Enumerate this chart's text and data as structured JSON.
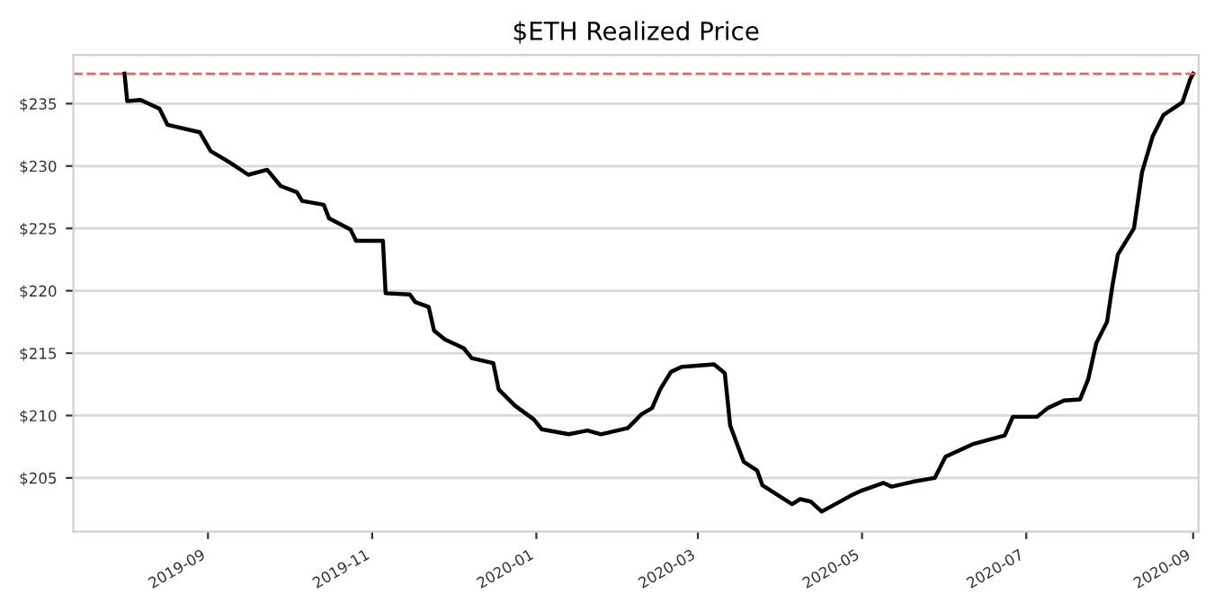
{
  "chart_data": {
    "type": "line",
    "title": "$ETH Realized Price",
    "x": [
      "2019-08-01",
      "2019-08-02",
      "2019-08-07",
      "2019-08-14",
      "2019-08-17",
      "2019-08-29",
      "2019-09-02",
      "2019-09-09",
      "2019-09-16",
      "2019-09-23",
      "2019-09-28",
      "2019-10-04",
      "2019-10-06",
      "2019-10-14",
      "2019-10-16",
      "2019-10-24",
      "2019-10-26",
      "2019-11-05",
      "2019-11-06",
      "2019-11-15",
      "2019-11-17",
      "2019-11-22",
      "2019-11-24",
      "2019-11-28",
      "2019-12-05",
      "2019-12-08",
      "2019-12-16",
      "2019-12-18",
      "2019-12-24",
      "2019-12-31",
      "2020-01-03",
      "2020-01-13",
      "2020-01-20",
      "2020-01-25",
      "2020-02-04",
      "2020-02-09",
      "2020-02-13",
      "2020-02-16",
      "2020-02-20",
      "2020-02-24",
      "2020-03-07",
      "2020-03-11",
      "2020-03-13",
      "2020-03-18",
      "2020-03-23",
      "2020-03-25",
      "2020-04-05",
      "2020-04-08",
      "2020-04-12",
      "2020-04-16",
      "2020-04-27",
      "2020-05-01",
      "2020-05-09",
      "2020-05-12",
      "2020-05-20",
      "2020-05-28",
      "2020-06-01",
      "2020-06-11",
      "2020-06-23",
      "2020-06-26",
      "2020-07-05",
      "2020-07-09",
      "2020-07-15",
      "2020-07-21",
      "2020-07-24",
      "2020-07-27",
      "2020-07-31",
      "2020-08-02",
      "2020-08-04",
      "2020-08-10",
      "2020-08-13",
      "2020-08-17",
      "2020-08-21",
      "2020-08-28",
      "2020-08-31",
      "2020-09-01"
    ],
    "series": [
      {
        "color": "#000000",
        "values": [
          237.4,
          235.2,
          235.3,
          234.6,
          233.3,
          232.7,
          231.2,
          230.3,
          229.3,
          229.7,
          228.4,
          227.9,
          227.2,
          226.9,
          225.8,
          224.9,
          224.0,
          224.0,
          219.8,
          219.7,
          219.1,
          218.7,
          216.8,
          216.1,
          215.4,
          214.6,
          214.2,
          212.1,
          210.8,
          209.7,
          208.9,
          208.5,
          208.8,
          208.5,
          209.0,
          210.1,
          210.6,
          212.1,
          213.5,
          213.9,
          214.1,
          213.4,
          209.2,
          206.3,
          205.6,
          204.4,
          202.9,
          203.3,
          203.1,
          202.3,
          203.6,
          204.0,
          204.6,
          204.3,
          204.7,
          205.0,
          206.7,
          207.7,
          208.4,
          209.9,
          209.9,
          210.6,
          211.2,
          211.3,
          212.9,
          215.8,
          217.5,
          220.4,
          222.9,
          225.0,
          229.5,
          232.4,
          234.1,
          235.1,
          237.0,
          237.4
        ]
      }
    ],
    "xlim": [
      "2019-07-13",
      "2020-09-03"
    ],
    "xticks": [
      {
        "value": "2019-09-01",
        "label": "2019-09"
      },
      {
        "value": "2019-11-01",
        "label": "2019-11"
      },
      {
        "value": "2020-01-01",
        "label": "2020-01"
      },
      {
        "value": "2020-03-01",
        "label": "2020-03"
      },
      {
        "value": "2020-05-01",
        "label": "2020-05"
      },
      {
        "value": "2020-07-01",
        "label": "2020-07"
      },
      {
        "value": "2020-09-01",
        "label": "2020-09"
      }
    ],
    "ylim": [
      200.7,
      238.9
    ],
    "yticks": [
      {
        "value": 205,
        "label": "$205"
      },
      {
        "value": 210,
        "label": "$210"
      },
      {
        "value": 215,
        "label": "$215"
      },
      {
        "value": 220,
        "label": "$220"
      },
      {
        "value": 225,
        "label": "$225"
      },
      {
        "value": 230,
        "label": "$230"
      },
      {
        "value": 235,
        "label": "$235"
      }
    ],
    "ref_lines": [
      {
        "axis": "y",
        "value": 237.4,
        "color": "#e06666",
        "line_style": "dashed"
      }
    ],
    "grid": "y",
    "legend": false,
    "marker": "none",
    "line_style": "solid"
  }
}
